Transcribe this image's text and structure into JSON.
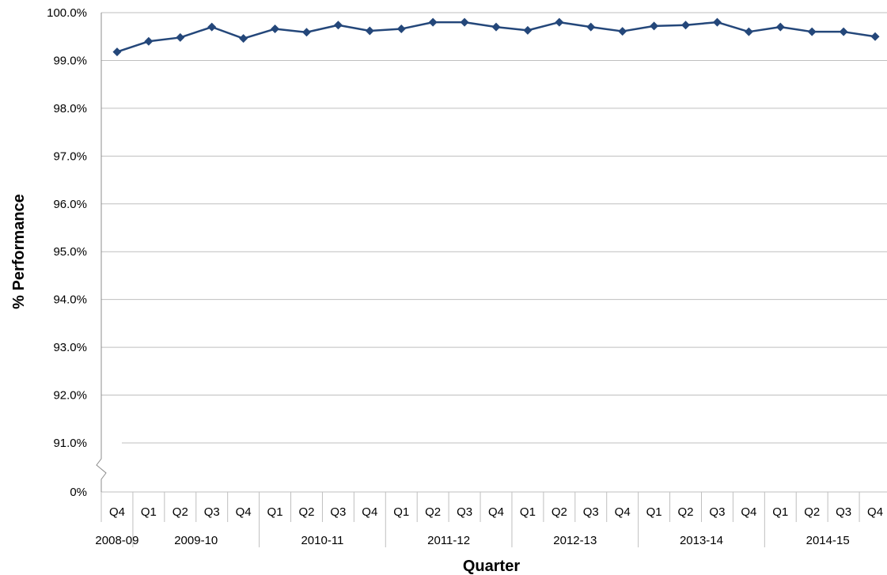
{
  "chart_data": {
    "type": "line",
    "title": "",
    "xlabel": "Quarter",
    "ylabel": "% Performance",
    "ylim": [
      91.0,
      100.0
    ],
    "axis_break": {
      "below": 91.0,
      "floor_label": "0%"
    },
    "y_ticks": [
      "91.0%",
      "92.0%",
      "93.0%",
      "94.0%",
      "95.0%",
      "96.0%",
      "97.0%",
      "98.0%",
      "99.0%",
      "100.0%"
    ],
    "grid": true,
    "legend": "none",
    "colors": {
      "series": "#24477a",
      "grid": "#bfbfbf",
      "axis": "#8c8c8c"
    },
    "categories": [
      "Q4",
      "Q1",
      "Q2",
      "Q3",
      "Q4",
      "Q1",
      "Q2",
      "Q3",
      "Q4",
      "Q1",
      "Q2",
      "Q3",
      "Q4",
      "Q1",
      "Q2",
      "Q3",
      "Q4",
      "Q1",
      "Q2",
      "Q3",
      "Q4",
      "Q1",
      "Q2",
      "Q3",
      "Q4"
    ],
    "groups": [
      {
        "label": "2008-09",
        "count": 1
      },
      {
        "label": "2009-10",
        "count": 4
      },
      {
        "label": "2010-11",
        "count": 4
      },
      {
        "label": "2011-12",
        "count": 4
      },
      {
        "label": "2012-13",
        "count": 4
      },
      {
        "label": "2013-14",
        "count": 4
      },
      {
        "label": "2014-15",
        "count": 4
      }
    ],
    "series": [
      {
        "values": [
          99.18,
          99.4,
          99.48,
          99.7,
          99.46,
          99.66,
          99.59,
          99.74,
          99.62,
          99.66,
          99.8,
          99.8,
          99.7,
          99.63,
          99.8,
          99.7,
          99.61,
          99.72,
          99.74,
          99.8,
          99.6,
          99.7,
          99.6,
          99.6,
          99.5
        ]
      }
    ]
  }
}
